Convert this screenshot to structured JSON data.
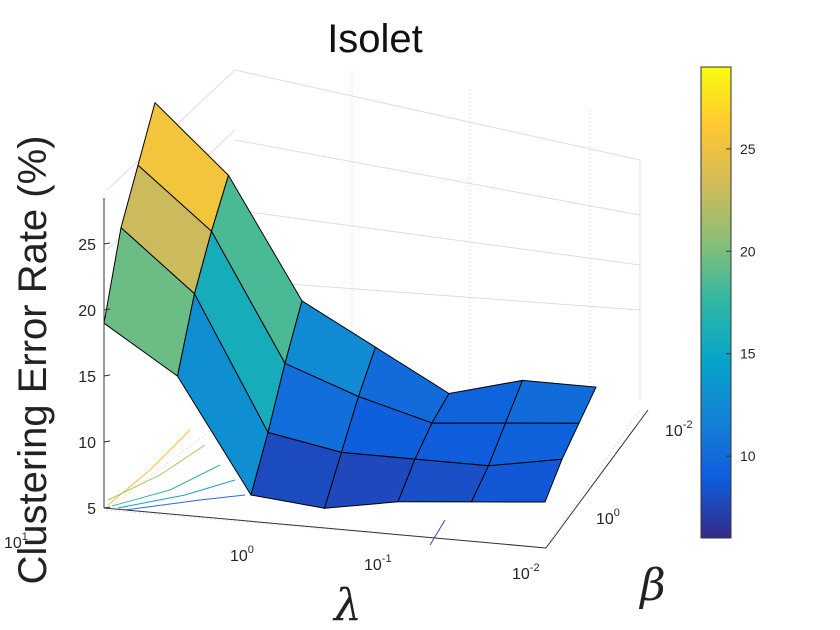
{
  "chart_data": {
    "type": "surface",
    "title": "Isolet",
    "xlabel": "λ",
    "ylabel": "β",
    "zlabel": "Clustering Error Rate (%)",
    "lambda_ticks": [
      {
        "base": "10",
        "exp": "1"
      },
      {
        "base": "10",
        "exp": "0"
      },
      {
        "base": "10",
        "exp": "-1"
      },
      {
        "base": "10",
        "exp": "-2"
      }
    ],
    "beta_ticks": [
      {
        "base": "10",
        "exp": "0"
      },
      {
        "base": "10",
        "exp": "-2"
      }
    ],
    "z_ticks": [
      "5",
      "10",
      "15",
      "20",
      "25"
    ],
    "zlim": [
      5,
      29
    ],
    "lambda_values": [
      "10",
      "3",
      "1",
      "0.3",
      "0.1",
      "0.03",
      "0.01"
    ],
    "beta_values": [
      "1",
      "0.1",
      "0.01",
      "0.001"
    ],
    "z": [
      [
        19.0,
        24.0,
        26.5,
        29.0
      ],
      [
        15.5,
        19.5,
        22.0,
        24.0
      ],
      [
        7.0,
        9.5,
        12.5,
        15.0
      ],
      [
        6.5,
        8.5,
        10.5,
        12.0
      ],
      [
        7.5,
        8.5,
        9.0,
        9.0
      ],
      [
        8.0,
        8.5,
        9.5,
        10.5
      ],
      [
        8.5,
        9.5,
        10.0,
        10.5
      ]
    ],
    "colorbar": {
      "ticks": [
        "10",
        "15",
        "20",
        "25"
      ],
      "range": [
        6,
        29
      ],
      "colormap": "parula"
    },
    "colormap_stops": [
      "#352a87",
      "#0f5cdd",
      "#1481d6",
      "#06a4ca",
      "#2eb7a4",
      "#87bf77",
      "#d1bb59",
      "#fec832",
      "#f9fb0e"
    ]
  }
}
